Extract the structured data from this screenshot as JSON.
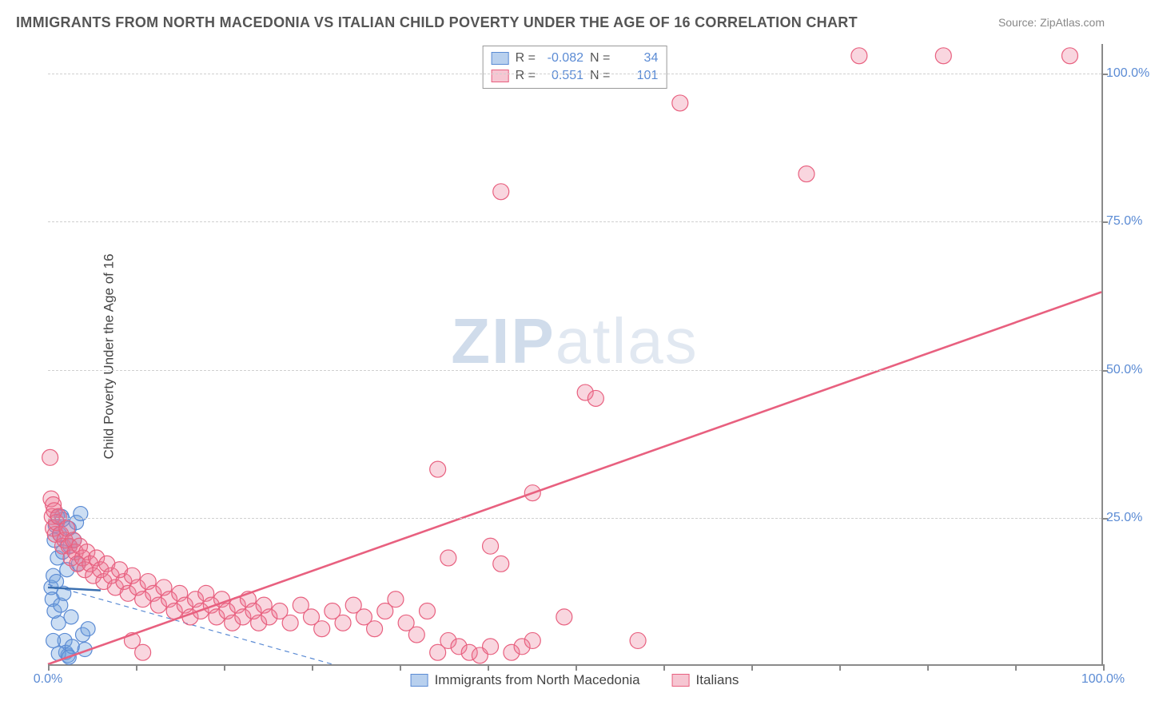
{
  "title": "IMMIGRANTS FROM NORTH MACEDONIA VS ITALIAN CHILD POVERTY UNDER THE AGE OF 16 CORRELATION CHART",
  "source": "Source: ZipAtlas.com",
  "y_axis_label": "Child Poverty Under the Age of 16",
  "watermark_bold": "ZIP",
  "watermark_light": "atlas",
  "chart": {
    "type": "scatter",
    "xlim": [
      0,
      100
    ],
    "ylim": [
      0,
      105
    ],
    "x_ticks": [
      0,
      8.3,
      16.7,
      25,
      33.3,
      41.7,
      50,
      58.3,
      66.7,
      75,
      83.3,
      91.7,
      100
    ],
    "x_tick_labels": {
      "0": "0.0%",
      "100": "100.0%"
    },
    "y_gridlines": [
      25,
      50,
      75,
      100
    ],
    "y_tick_labels": {
      "25": "25.0%",
      "50": "50.0%",
      "75": "75.0%",
      "100": "100.0%"
    },
    "background_color": "#ffffff",
    "grid_color": "#d0d0d0",
    "axis_color": "#8a8a8a",
    "tick_label_color": "#5b8bd4",
    "series": [
      {
        "name": "Immigrants from North Macedonia",
        "color_fill": "rgba(110,160,220,0.35)",
        "color_stroke": "#5b8bd4",
        "swatch_fill": "#b8d0ee",
        "swatch_stroke": "#5b8bd4",
        "R": "-0.082",
        "N": "34",
        "trend": {
          "x1": 0,
          "y1": 13.5,
          "x2": 27,
          "y2": 0,
          "dash": "6,5",
          "width": 1.2,
          "color": "#5b8bd4"
        },
        "solid_trend": {
          "x1": 0,
          "y1": 13.0,
          "x2": 5,
          "y2": 12.5,
          "width": 2.4,
          "color": "#3a6fb0"
        },
        "marker_radius": 9,
        "points": [
          [
            0.3,
            13
          ],
          [
            0.4,
            11
          ],
          [
            0.5,
            15
          ],
          [
            0.6,
            9
          ],
          [
            0.8,
            14
          ],
          [
            0.9,
            18
          ],
          [
            1.0,
            7
          ],
          [
            1.1,
            22
          ],
          [
            1.2,
            10
          ],
          [
            1.3,
            25
          ],
          [
            1.4,
            19
          ],
          [
            1.5,
            12
          ],
          [
            1.6,
            4
          ],
          [
            1.7,
            2
          ],
          [
            1.8,
            16
          ],
          [
            1.9,
            1.5
          ],
          [
            2.0,
            23
          ],
          [
            2.1,
            20
          ],
          [
            2.2,
            8
          ],
          [
            2.3,
            3
          ],
          [
            2.5,
            21
          ],
          [
            2.7,
            24
          ],
          [
            2.9,
            17
          ],
          [
            3.1,
            25.5
          ],
          [
            3.3,
            5
          ],
          [
            3.5,
            2.5
          ],
          [
            3.8,
            6
          ],
          [
            0.6,
            21
          ],
          [
            0.7,
            23.5
          ],
          [
            0.5,
            4
          ],
          [
            1.0,
            1.8
          ],
          [
            2.0,
            1.2
          ],
          [
            1.4,
            24.5
          ],
          [
            0.9,
            25
          ]
        ]
      },
      {
        "name": "Italians",
        "color_fill": "rgba(235,120,150,0.30)",
        "color_stroke": "#e8607f",
        "swatch_fill": "#f6c6d2",
        "swatch_stroke": "#e8607f",
        "R": "0.551",
        "N": "101",
        "trend": {
          "x1": 0,
          "y1": 0,
          "x2": 100,
          "y2": 63,
          "dash": "none",
          "width": 2.6,
          "color": "#e8607f"
        },
        "marker_radius": 10,
        "points": [
          [
            0.2,
            35
          ],
          [
            0.3,
            28
          ],
          [
            0.4,
            25
          ],
          [
            0.5,
            27
          ],
          [
            0.5,
            23
          ],
          [
            0.6,
            26
          ],
          [
            0.7,
            22
          ],
          [
            0.8,
            24
          ],
          [
            1.0,
            25
          ],
          [
            1.2,
            22
          ],
          [
            1.4,
            20
          ],
          [
            1.6,
            21
          ],
          [
            1.8,
            23
          ],
          [
            2.0,
            20
          ],
          [
            2.2,
            18
          ],
          [
            2.4,
            21
          ],
          [
            2.6,
            19
          ],
          [
            2.8,
            17
          ],
          [
            3.0,
            20
          ],
          [
            3.3,
            18
          ],
          [
            3.5,
            16
          ],
          [
            3.7,
            19
          ],
          [
            4.0,
            17
          ],
          [
            4.3,
            15
          ],
          [
            4.6,
            18
          ],
          [
            5.0,
            16
          ],
          [
            5.3,
            14
          ],
          [
            5.6,
            17
          ],
          [
            6.0,
            15
          ],
          [
            6.4,
            13
          ],
          [
            6.8,
            16
          ],
          [
            7.2,
            14
          ],
          [
            7.6,
            12
          ],
          [
            8.0,
            15
          ],
          [
            8.5,
            13
          ],
          [
            9.0,
            11
          ],
          [
            9.5,
            14
          ],
          [
            10,
            12
          ],
          [
            10.5,
            10
          ],
          [
            11,
            13
          ],
          [
            11.5,
            11
          ],
          [
            12,
            9
          ],
          [
            12.5,
            12
          ],
          [
            13,
            10
          ],
          [
            13.5,
            8
          ],
          [
            14,
            11
          ],
          [
            14.5,
            9
          ],
          [
            15,
            12
          ],
          [
            15.5,
            10
          ],
          [
            16,
            8
          ],
          [
            16.5,
            11
          ],
          [
            17,
            9
          ],
          [
            17.5,
            7
          ],
          [
            18,
            10
          ],
          [
            18.5,
            8
          ],
          [
            19,
            11
          ],
          [
            19.5,
            9
          ],
          [
            20,
            7
          ],
          [
            20.5,
            10
          ],
          [
            21,
            8
          ],
          [
            22,
            9
          ],
          [
            23,
            7
          ],
          [
            24,
            10
          ],
          [
            25,
            8
          ],
          [
            26,
            6
          ],
          [
            27,
            9
          ],
          [
            28,
            7
          ],
          [
            29,
            10
          ],
          [
            30,
            8
          ],
          [
            31,
            6
          ],
          [
            32,
            9
          ],
          [
            33,
            11
          ],
          [
            34,
            7
          ],
          [
            35,
            5
          ],
          [
            36,
            9
          ],
          [
            37,
            2
          ],
          [
            38,
            4
          ],
          [
            39,
            3
          ],
          [
            40,
            2
          ],
          [
            41,
            1.5
          ],
          [
            42,
            3
          ],
          [
            38,
            18
          ],
          [
            42,
            20
          ],
          [
            43,
            17
          ],
          [
            44,
            2
          ],
          [
            45,
            3
          ],
          [
            46,
            4
          ],
          [
            49,
            8
          ],
          [
            51,
            46
          ],
          [
            52,
            45
          ],
          [
            37,
            33
          ],
          [
            46,
            29
          ],
          [
            56,
            4
          ],
          [
            60,
            95
          ],
          [
            77,
            103
          ],
          [
            85,
            103
          ],
          [
            97,
            103
          ],
          [
            43,
            80
          ],
          [
            72,
            83
          ],
          [
            8,
            4
          ],
          [
            9,
            2
          ]
        ]
      }
    ],
    "legend_box": {
      "border_color": "#999999",
      "bg": "#ffffff",
      "value_color": "#5b8bd4",
      "label_color": "#555555"
    }
  },
  "stats_labels": {
    "R": "R =",
    "N": "N ="
  }
}
